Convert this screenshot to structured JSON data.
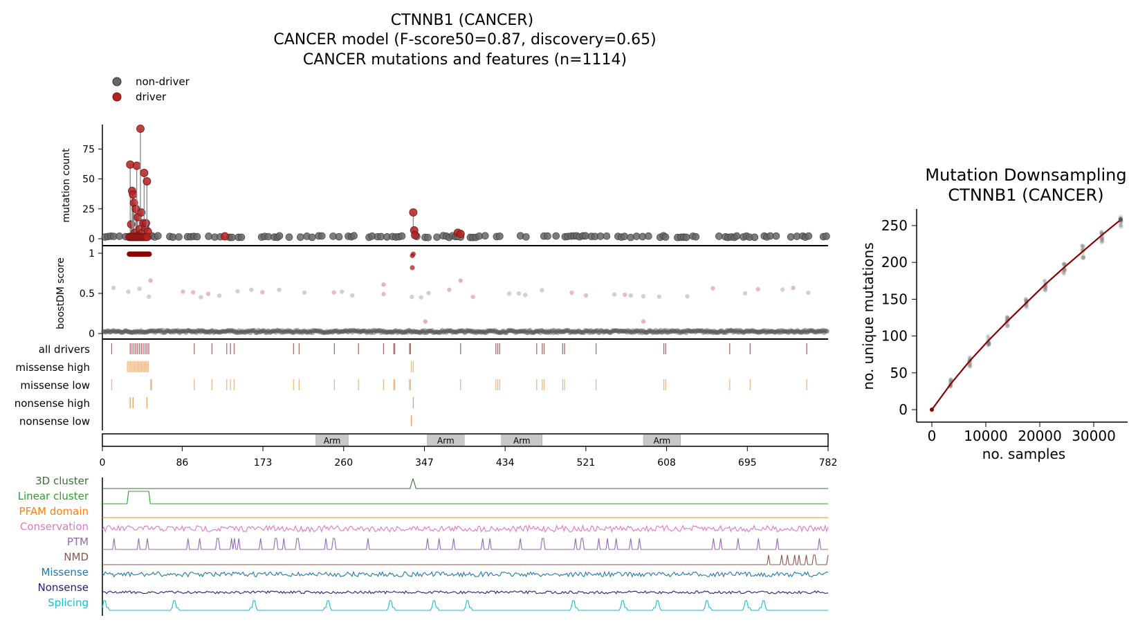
{
  "figure": {
    "title_lines": [
      "CTNNB1 (CANCER)",
      "CANCER model (F-score50=0.87, discovery=0.65)",
      "CANCER mutations and features (n=1114)"
    ]
  },
  "legend": {
    "items": [
      {
        "label": "non-driver",
        "color": "#666666"
      },
      {
        "label": "driver",
        "color": "#b22222"
      }
    ]
  },
  "colors": {
    "non_driver": "#666666",
    "driver": "#b22222",
    "driver_tick": "#b06a6a",
    "missense_tick": "#e8b98a",
    "nonsense_tick": "#e0a060",
    "domain_fill": "#c8c8c8",
    "downsampling_line": "#8b0000"
  },
  "chart_data": [
    {
      "type": "scatter",
      "panel": "mutation-count",
      "ylabel": "mutation count",
      "yticks": [
        0,
        25,
        50,
        75
      ],
      "ylim": [
        0,
        95
      ],
      "xlim": [
        0,
        782
      ],
      "driver_counts": [
        {
          "pos": 30,
          "count": 62
        },
        {
          "pos": 31,
          "count": 12
        },
        {
          "pos": 32,
          "count": 40
        },
        {
          "pos": 33,
          "count": 37
        },
        {
          "pos": 34,
          "count": 30
        },
        {
          "pos": 35,
          "count": 5
        },
        {
          "pos": 36,
          "count": 25
        },
        {
          "pos": 37,
          "count": 61
        },
        {
          "pos": 38,
          "count": 18
        },
        {
          "pos": 39,
          "count": 3
        },
        {
          "pos": 40,
          "count": 8
        },
        {
          "pos": 41,
          "count": 92
        },
        {
          "pos": 42,
          "count": 22
        },
        {
          "pos": 43,
          "count": 5
        },
        {
          "pos": 44,
          "count": 13
        },
        {
          "pos": 45,
          "count": 55
        },
        {
          "pos": 46,
          "count": 9
        },
        {
          "pos": 47,
          "count": 13
        },
        {
          "pos": 48,
          "count": 48
        },
        {
          "pos": 49,
          "count": 6
        },
        {
          "pos": 132,
          "count": 2
        },
        {
          "pos": 335,
          "count": 22
        },
        {
          "pos": 336,
          "count": 7
        },
        {
          "pos": 337,
          "count": 3
        },
        {
          "pos": 383,
          "count": 5
        },
        {
          "pos": 386,
          "count": 4
        }
      ]
    },
    {
      "type": "scatter",
      "panel": "boostdm-score",
      "ylabel": "boostDM score",
      "yticks": [
        0,
        0.5,
        1
      ],
      "ylim": [
        0,
        1
      ]
    },
    {
      "type": "table",
      "panel": "tracks",
      "rows": [
        "all drivers",
        "missense high",
        "missense low",
        "nonsense high",
        "nonsense low"
      ]
    },
    {
      "type": "bar",
      "panel": "domains",
      "xticks": [
        0,
        86,
        173,
        260,
        347,
        434,
        521,
        608,
        695,
        782
      ],
      "domains": [
        {
          "label": "Arm",
          "start": 230,
          "end": 265
        },
        {
          "label": "Arm",
          "start": 350,
          "end": 390
        },
        {
          "label": "Arm",
          "start": 430,
          "end": 474
        },
        {
          "label": "Arm",
          "start": 583,
          "end": 623
        }
      ]
    },
    {
      "type": "line",
      "panel": "features",
      "series": [
        {
          "name": "3D cluster",
          "color": "#3b6e3b"
        },
        {
          "name": "Linear cluster",
          "color": "#2ca02c"
        },
        {
          "name": "PFAM domain",
          "color": "#ff7f0e"
        },
        {
          "name": "Conservation",
          "color": "#e377c2"
        },
        {
          "name": "PTM",
          "color": "#9467bd"
        },
        {
          "name": "NMD",
          "color": "#8c564b"
        },
        {
          "name": "Missense",
          "color": "#1f77b4"
        },
        {
          "name": "Nonsense",
          "color": "#1a237e"
        },
        {
          "name": "Splicing",
          "color": "#17becf"
        }
      ]
    },
    {
      "type": "line",
      "panel": "downsampling",
      "title": "Mutation Downsampling\nCTNNB1 (CANCER)",
      "xlabel": "no. samples",
      "ylabel": "no. unique mutations",
      "xticks": [
        0,
        10000,
        20000,
        30000
      ],
      "yticks": [
        0,
        50,
        100,
        150,
        200,
        250
      ],
      "xlim": [
        0,
        35000
      ],
      "ylim": [
        0,
        260
      ],
      "x": [
        0,
        3500,
        7000,
        10500,
        14000,
        17500,
        21000,
        24500,
        28000,
        31500,
        35000
      ],
      "y": [
        0,
        35,
        66,
        94,
        120,
        145,
        170,
        193,
        215,
        237,
        258
      ]
    }
  ]
}
